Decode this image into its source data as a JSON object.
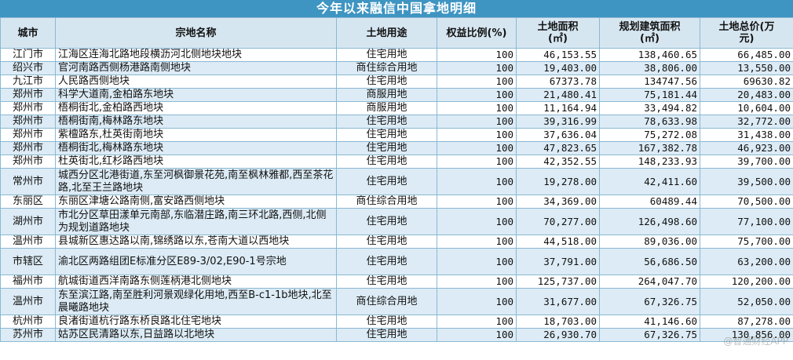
{
  "title": "今年以来融信中国拿地明细",
  "columns": [
    "城市",
    "宗地名称",
    "土地用途",
    "权益比例(%)",
    "土地面积\n(㎡)",
    "规划建筑面积\n(㎡)",
    "土地总价(万\n元)"
  ],
  "rows": [
    {
      "city": "江门市",
      "name": "江海区连海北路地段横沥河北侧地块地块",
      "use": "住宅用地",
      "ratio": "100",
      "area": "46,153.55",
      "build": "138,460.65",
      "price": "66,485.00"
    },
    {
      "city": "绍兴市",
      "name": "官河南路西侧杨港路南侧地块",
      "use": "商住综合用地",
      "ratio": "100",
      "area": "19,403.00",
      "build": "38,806.00",
      "price": "13,550.00"
    },
    {
      "city": "九江市",
      "name": "人民路西侧地块",
      "use": "住宅用地",
      "ratio": "100",
      "area": "67373.78",
      "build": "134747.56",
      "price": "69630.82"
    },
    {
      "city": "郑州市",
      "name": "科学大道南,金柏路东地块",
      "use": "商服用地",
      "ratio": "100",
      "area": "21,480.41",
      "build": "75,181.44",
      "price": "20,483.00"
    },
    {
      "city": "郑州市",
      "name": "梧桐街北,金柏路西地块",
      "use": "商服用地",
      "ratio": "100",
      "area": "11,164.94",
      "build": "33,494.82",
      "price": "10,604.00"
    },
    {
      "city": "郑州市",
      "name": "梧桐街南,梅林路东地块",
      "use": "住宅用地",
      "ratio": "100",
      "area": "39,316.99",
      "build": "78,633.98",
      "price": "32,772.00"
    },
    {
      "city": "郑州市",
      "name": "紫檀路东,杜英街南地块",
      "use": "住宅用地",
      "ratio": "100",
      "area": "37,636.04",
      "build": "75,272.08",
      "price": "31,438.00"
    },
    {
      "city": "郑州市",
      "name": "梧桐街北,梅林路东地块",
      "use": "住宅用地",
      "ratio": "100",
      "area": "47,823.65",
      "build": "167,382.78",
      "price": "46,923.00"
    },
    {
      "city": "郑州市",
      "name": "杜英街北,红杉路西地块",
      "use": "住宅用地",
      "ratio": "100",
      "area": "42,352.55",
      "build": "148,233.93",
      "price": "39,700.00"
    },
    {
      "city": "常州市",
      "name": "城西分区北港街道,东至河枫御景花苑,南至枫林雅都,西至茶花路,北至王兰路地块",
      "use": "住宅用地",
      "ratio": "100",
      "area": "19,278.00",
      "build": "42,411.60",
      "price": "39,500.00"
    },
    {
      "city": "东丽区",
      "name": "东丽区津塘公路南侧,富安路西侧地块",
      "use": "商住综合用地",
      "ratio": "100",
      "area": "34,369.00",
      "build": "60489.44",
      "price": "70,500.00"
    },
    {
      "city": "湖州市",
      "name": "市北分区草田漾单元南部,东临潜庄路,南三环北路,西侧,北侧为规划道路地块",
      "use": "住宅用地",
      "ratio": "100",
      "area": "70,277.00",
      "build": "126,498.60",
      "price": "77,100.00"
    },
    {
      "city": "温州市",
      "name": "县城新区惠达路以南,锦绣路以东,苍南大道以西地块",
      "use": "住宅用地",
      "ratio": "100",
      "area": "44,518.00",
      "build": "89,036.00",
      "price": "75,700.00"
    },
    {
      "city": "市辖区",
      "name": "渝北区两路组团E标准分区E89-3/02,E90-1号宗地",
      "use": "住宅用地",
      "ratio": "100",
      "area": "37,791.00",
      "build": "56,686.50",
      "price": "63,200.00"
    },
    {
      "city": "福州市",
      "name": "航城街道西洋南路东侧莲柄港北侧地块",
      "use": "住宅用地",
      "ratio": "100",
      "area": "125,737.00",
      "build": "264,047.70",
      "price": "120,200.00"
    },
    {
      "city": "温州市",
      "name": "东至滨江路,南至胜利河景观绿化用地,西至B-c1-1b地块,北至晨曦路地块",
      "use": "商住综合用地",
      "ratio": "100",
      "area": "31,677.00",
      "build": "67,326.75",
      "price": "52,050.00"
    },
    {
      "city": "杭州市",
      "name": "良渚街道杭行路东桥良路北住宅地块",
      "use": "住宅用地",
      "ratio": "100",
      "area": "18,703.00",
      "build": "41,146.60",
      "price": "87,278.00"
    },
    {
      "city": "苏州市",
      "name": "姑苏区民清路以东,日益路以北地块",
      "use": "住宅用地",
      "ratio": "100",
      "area": "26,930.70",
      "build": "67,326.75",
      "price": "130,856.00"
    }
  ],
  "watermark": "@智通财经APP"
}
